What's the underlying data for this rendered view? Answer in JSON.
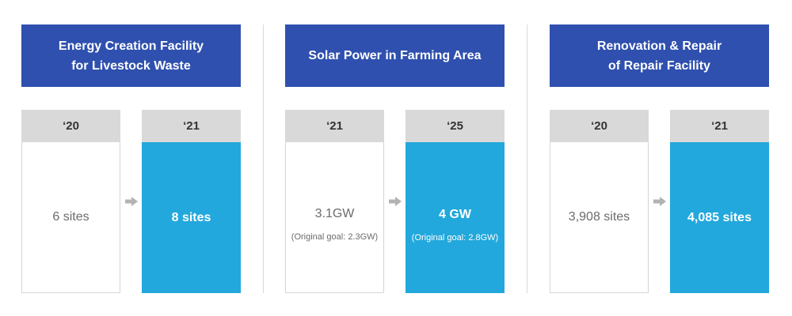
{
  "panels": [
    {
      "title": "Energy Creation Facility\nfor Livestock Waste",
      "before": {
        "year": "‘20",
        "value": "6 sites",
        "note": ""
      },
      "after": {
        "year": "‘21",
        "value": "8 sites",
        "note": ""
      }
    },
    {
      "title": "Solar Power in Farming Area",
      "before": {
        "year": "‘21",
        "value": "3.1GW",
        "note": "(Original goal: 2.3GW)"
      },
      "after": {
        "year": "‘25",
        "value": "4 GW",
        "note": "(Original goal: 2.8GW)"
      }
    },
    {
      "title": "Renovation & Repair\nof Repair Facility",
      "before": {
        "year": "‘20",
        "value": "3,908 sites",
        "note": ""
      },
      "after": {
        "year": "‘21",
        "value": "4,085 sites",
        "note": ""
      }
    }
  ],
  "colors": {
    "header_bg": "#2f50ae",
    "highlight_bg": "#22a8dc",
    "year_bg": "#d9d9d9",
    "arrow": "#b3b3b3"
  },
  "icons": {
    "arrow": "arrow-right-icon"
  }
}
